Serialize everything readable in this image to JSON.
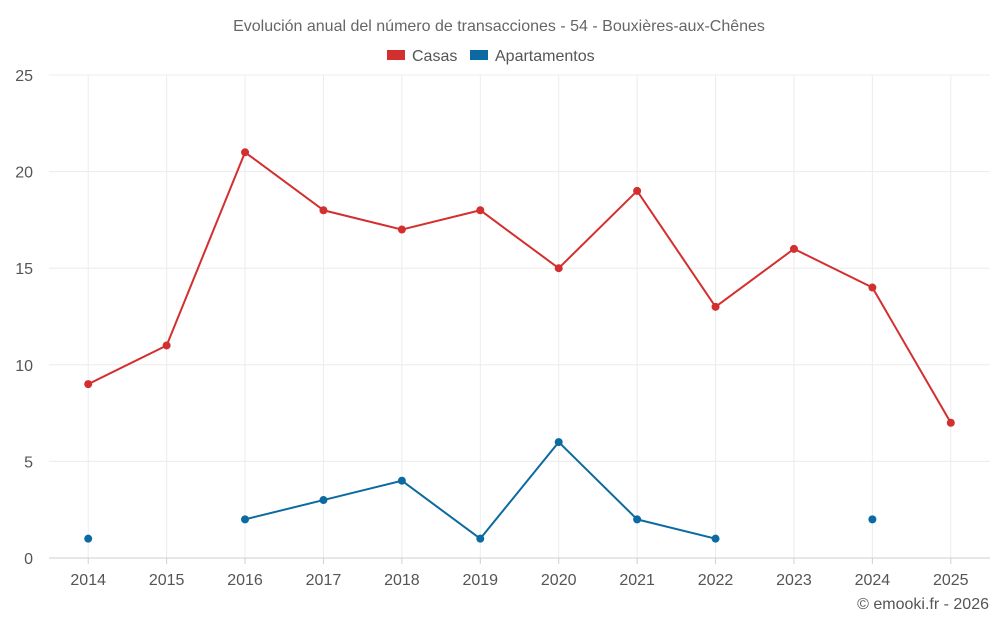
{
  "chart_data": {
    "type": "line",
    "title": "Evolución anual del número de transacciones - 54 - Bouxières-aux-Chênes",
    "categories": [
      "2014",
      "2015",
      "2016",
      "2017",
      "2018",
      "2019",
      "2020",
      "2021",
      "2022",
      "2023",
      "2024",
      "2025"
    ],
    "series": [
      {
        "name": "Casas",
        "color": "#d32f2f",
        "values": [
          9,
          11,
          21,
          18,
          17,
          18,
          15,
          19,
          13,
          16,
          14,
          7
        ]
      },
      {
        "name": "Apartamentos",
        "color": "#0a6aa1",
        "values": [
          1,
          null,
          2,
          3,
          4,
          1,
          6,
          2,
          1,
          null,
          2,
          null
        ]
      }
    ],
    "ylim": [
      0,
      25
    ],
    "yticks": [
      "0",
      "5",
      "10",
      "15",
      "20",
      "25"
    ],
    "grid": true,
    "legend_position": "top-center",
    "xlabel": "",
    "ylabel": ""
  },
  "credit": "© emooki.fr - 2026"
}
